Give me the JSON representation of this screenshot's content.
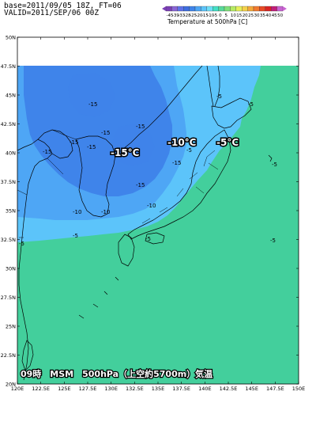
{
  "header": {
    "line1": "base=2011/09/05 18Z, FT=06",
    "line2": "VALID=2011/SEP/06 00Z"
  },
  "legend": {
    "title": "Temperature at 500hPa  [C]",
    "values": [
      "-45",
      "-39",
      "-33",
      "-28",
      "-25",
      "-20",
      "-15",
      "-10",
      "-5",
      "0",
      "5",
      "10",
      "15",
      "20",
      "25",
      "30",
      "35",
      "40",
      "45",
      "50"
    ],
    "colors": [
      "#7b3fb5",
      "#8a66d6",
      "#5f72e8",
      "#3e6ee0",
      "#3f84ea",
      "#4ea6f5",
      "#5cc4fa",
      "#6fdff8",
      "#43e0c7",
      "#59d99a",
      "#7fe07a",
      "#b5eb64",
      "#e6f05a",
      "#f5d24b",
      "#f5a93c",
      "#f27a30",
      "#ea4b26",
      "#d92424",
      "#c21e7a",
      "#c864d2"
    ]
  },
  "axes": {
    "lat_labels": [
      "50N",
      "47.5N",
      "45N",
      "42.5N",
      "40N",
      "37.5N",
      "35N",
      "32.5N",
      "30N",
      "27.5N",
      "25N",
      "22.5N",
      "20N"
    ],
    "lon_labels": [
      "120E",
      "122.5E",
      "125E",
      "127.5E",
      "130E",
      "132.5E",
      "135E",
      "137.5E",
      "140E",
      "142.5E",
      "145E",
      "147.5E",
      "150E"
    ]
  },
  "field_colors": {
    "le_-15": "#3f84ea",
    "le_-10": "#4ea6f5",
    "le_-5": "#5cc4fa",
    "le_0": "#6fdff8",
    "gt_-5": "#43cf9c",
    "no_data": "#ffffff",
    "coast": "#000000"
  },
  "contour_labels": [
    {
      "text": "-15",
      "name": "contour-label-15a"
    },
    {
      "text": "-15",
      "name": "contour-label-15b"
    },
    {
      "text": "-15",
      "name": "contour-label-15c"
    },
    {
      "text": "-15",
      "name": "contour-label-15d"
    },
    {
      "text": "-15",
      "name": "contour-label-15e"
    },
    {
      "text": "-15",
      "name": "contour-label-15f"
    },
    {
      "text": "-15",
      "name": "contour-label-15g"
    },
    {
      "text": "-15",
      "name": "contour-label-15h"
    },
    {
      "text": "-10",
      "name": "contour-label-10a"
    },
    {
      "text": "-10",
      "name": "contour-label-10b"
    },
    {
      "text": "-10",
      "name": "contour-label-10c"
    },
    {
      "text": "-5",
      "name": "contour-label-5a"
    },
    {
      "text": "-5",
      "name": "contour-label-5b"
    },
    {
      "text": "-5",
      "name": "contour-label-5c"
    },
    {
      "text": "-5",
      "name": "contour-label-5d"
    },
    {
      "text": "-5",
      "name": "contour-label-5e"
    },
    {
      "text": "-5",
      "name": "contour-label-5f"
    },
    {
      "text": "-5",
      "name": "contour-label-5g"
    },
    {
      "text": "-5",
      "name": "contour-label-5h"
    }
  ],
  "big_labels": [
    "-15°C",
    "-10°C",
    "-5°C"
  ],
  "caption": "09時　MSM　500hPa（上空約5700m）気温"
}
